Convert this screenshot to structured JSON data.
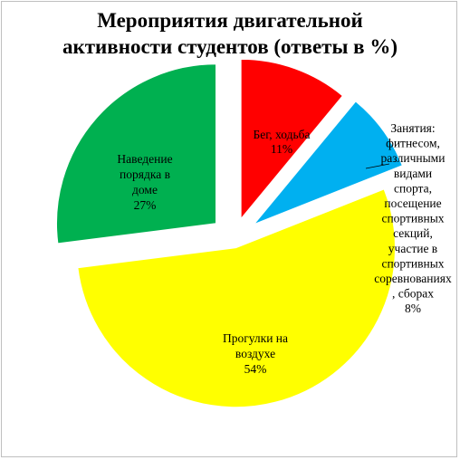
{
  "chart_data": {
    "type": "pie",
    "title": [
      "Мероприятия двигательной",
      "активности студентов (ответы в %)"
    ],
    "slices": [
      {
        "label": [
          "Бег, ходьба",
          "11%"
        ],
        "value": 11,
        "color": "#ff0000"
      },
      {
        "label": [
          "Занятия:",
          "фитнесом,",
          "различными",
          "видами",
          "спорта,",
          "посещение",
          "спортивных",
          "секций,",
          "участие в",
          "спортивных",
          "соревнованиях",
          ", сборах",
          "8%"
        ],
        "value": 8,
        "color": "#00b0f0"
      },
      {
        "label": [
          "Прогулки на",
          "воздухе",
          "54%"
        ],
        "value": 54,
        "color": "#ffff00"
      },
      {
        "label": [
          "Наведение",
          "порядка в",
          "доме",
          "27%"
        ],
        "value": 27,
        "color": "#00b050"
      }
    ],
    "legend": "none"
  }
}
